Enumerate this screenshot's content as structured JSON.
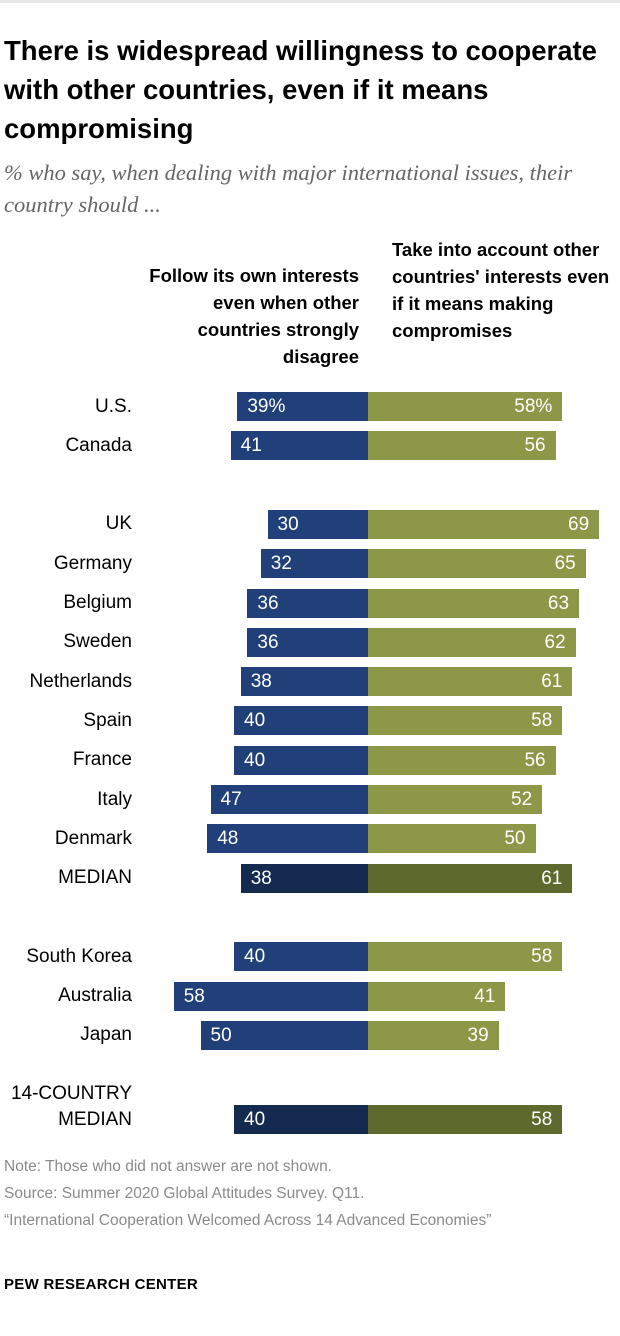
{
  "header": {
    "title": "There is widespread willingness to cooperate with other countries, even if it means compromising",
    "subtitle": "% who say, when dealing with major international issues, their country should ..."
  },
  "chart_data": {
    "type": "bar",
    "orientation": "horizontal-diverging",
    "title": "There is widespread willingness to cooperate with other countries, even if it means compromising",
    "subtitle": "% who say, when dealing with major international issues, their country should ...",
    "series": [
      {
        "name": "Follow its own interests even when other countries strongly disagree",
        "color": "#213f78"
      },
      {
        "name": "Take into account other countries' interests even if it means making compromises",
        "color": "#8c9747"
      }
    ],
    "rows": [
      {
        "category": "U.S.",
        "left": 39,
        "right": 58,
        "left_label": "39%",
        "right_label": "58%",
        "group": 0
      },
      {
        "category": "Canada",
        "left": 41,
        "right": 56,
        "left_label": "41",
        "right_label": "56",
        "group": 0
      },
      {
        "category": "UK",
        "left": 30,
        "right": 69,
        "left_label": "30",
        "right_label": "69",
        "group": 1
      },
      {
        "category": "Germany",
        "left": 32,
        "right": 65,
        "left_label": "32",
        "right_label": "65",
        "group": 1
      },
      {
        "category": "Belgium",
        "left": 36,
        "right": 63,
        "left_label": "36",
        "right_label": "63",
        "group": 1
      },
      {
        "category": "Sweden",
        "left": 36,
        "right": 62,
        "left_label": "36",
        "right_label": "62",
        "group": 1
      },
      {
        "category": "Netherlands",
        "left": 38,
        "right": 61,
        "left_label": "38",
        "right_label": "61",
        "group": 1
      },
      {
        "category": "Spain",
        "left": 40,
        "right": 58,
        "left_label": "40",
        "right_label": "58",
        "group": 1
      },
      {
        "category": "France",
        "left": 40,
        "right": 56,
        "left_label": "40",
        "right_label": "56",
        "group": 1
      },
      {
        "category": "Italy",
        "left": 47,
        "right": 52,
        "left_label": "47",
        "right_label": "52",
        "group": 1
      },
      {
        "category": "Denmark",
        "left": 48,
        "right": 50,
        "left_label": "48",
        "right_label": "50",
        "group": 1
      },
      {
        "category": "MEDIAN",
        "left": 38,
        "right": 61,
        "left_label": "38",
        "right_label": "61",
        "group": 1,
        "median": true
      },
      {
        "category": "South Korea",
        "left": 40,
        "right": 58,
        "left_label": "40",
        "right_label": "58",
        "group": 2
      },
      {
        "category": "Australia",
        "left": 58,
        "right": 41,
        "left_label": "58",
        "right_label": "41",
        "group": 2
      },
      {
        "category": "Japan",
        "left": 50,
        "right": 39,
        "left_label": "50",
        "right_label": "39",
        "group": 2
      },
      {
        "category": "14-COUNTRY MEDIAN",
        "left": 40,
        "right": 58,
        "left_label": "40",
        "right_label": "58",
        "group": 3,
        "median": true
      }
    ],
    "xlim": [
      0,
      100
    ]
  },
  "footer": {
    "note": "Note: Those who did not answer are not shown.",
    "source": "Source: Summer 2020 Global Attitudes Survey. Q11.",
    "report": "“International Cooperation Welcomed Across 14 Advanced Economies”",
    "brand": "PEW RESEARCH CENTER"
  }
}
